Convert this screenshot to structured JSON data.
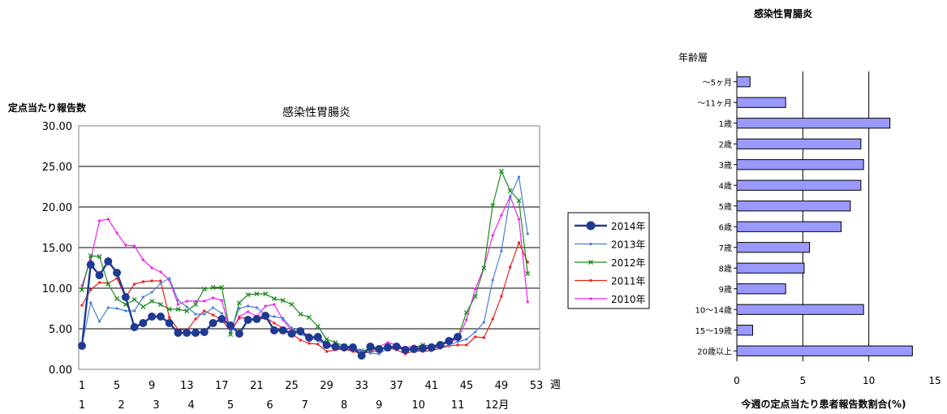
{
  "chart_data": [
    {
      "type": "line",
      "title": "感染性胃腸炎",
      "ylabel": "定点当たり報告数",
      "xlabel": "週",
      "ylim": [
        0,
        30
      ],
      "y_ticks": [
        "0.00",
        "5.00",
        "10.00",
        "15.00",
        "20.00",
        "25.00",
        "30.00"
      ],
      "week_ticks": [
        "1",
        "5",
        "9",
        "13",
        "17",
        "21",
        "25",
        "29",
        "33",
        "37",
        "41",
        "45",
        "49",
        "53"
      ],
      "month_ticks": [
        {
          "label": "1",
          "week": 1
        },
        {
          "label": "2",
          "week": 5.5
        },
        {
          "label": "3",
          "week": 9.5
        },
        {
          "label": "4",
          "week": 13.5
        },
        {
          "label": "5",
          "week": 18
        },
        {
          "label": "6",
          "week": 22.5
        },
        {
          "label": "7",
          "week": 26.5
        },
        {
          "label": "8",
          "week": 31
        },
        {
          "label": "9",
          "week": 35
        },
        {
          "label": "10",
          "week": 39.5
        },
        {
          "label": "11",
          "week": 44
        },
        {
          "label": "12月",
          "week": 48.5
        }
      ],
      "grid": true,
      "legend_position": "right",
      "series": [
        {
          "name": "2014年",
          "color": "#1f3a93",
          "marker": "circle",
          "bold": true,
          "values": [
            2.9,
            12.9,
            11.6,
            13.3,
            11.9,
            8.9,
            5.2,
            5.7,
            6.5,
            6.5,
            5.7,
            4.5,
            4.5,
            4.5,
            4.6,
            5.7,
            6.2,
            5.4,
            4.4,
            6.1,
            6.2,
            6.6,
            4.8,
            4.8,
            4.4,
            4.7,
            3.9,
            4.0,
            3.0,
            2.8,
            2.7,
            2.7,
            1.7,
            2.8,
            2.5,
            2.7,
            2.8,
            2.4,
            2.5,
            2.6,
            2.7,
            3.0,
            3.5,
            4.0
          ]
        },
        {
          "name": "2013年",
          "color": "#4a7fd6",
          "marker": "dot",
          "values": [
            3.0,
            8.2,
            5.9,
            7.6,
            7.5,
            7.2,
            7.2,
            8.9,
            9.5,
            10.6,
            11.2,
            8.5,
            7.7,
            6.8,
            6.8,
            7.6,
            6.9,
            4.7,
            7.5,
            7.8,
            7.6,
            6.7,
            6.5,
            6.3,
            5.1,
            4.3,
            3.9,
            3.5,
            3.0,
            2.8,
            2.6,
            2.6,
            2.3,
            2.0,
            1.9,
            2.6,
            2.7,
            2.6,
            2.4,
            2.4,
            2.6,
            2.7,
            3.0,
            3.4,
            3.7,
            4.6,
            5.8,
            11.0,
            14.6,
            21.3,
            23.7,
            16.7
          ]
        },
        {
          "name": "2012年",
          "color": "#1e8a1e",
          "marker": "x",
          "values": [
            9.8,
            14.0,
            13.9,
            10.5,
            8.7,
            8.0,
            8.6,
            7.7,
            8.4,
            8.0,
            7.4,
            7.4,
            7.2,
            8.0,
            9.9,
            10.1,
            10.1,
            4.3,
            8.2,
            9.2,
            9.3,
            9.3,
            8.7,
            8.5,
            8.0,
            6.8,
            6.4,
            5.3,
            3.7,
            3.3,
            2.9,
            2.7,
            2.3,
            2.4,
            2.6,
            2.5,
            2.9,
            2.4,
            2.7,
            3.0,
            2.9,
            3.1,
            3.6,
            3.9,
            7.0,
            9.0,
            12.5,
            20.2,
            24.4,
            22.0,
            20.8,
            11.8
          ]
        },
        {
          "name": "2011年",
          "color": "#e82020",
          "marker": "square",
          "values": [
            7.9,
            9.8,
            10.7,
            10.6,
            11.2,
            8.9,
            10.5,
            10.8,
            10.9,
            10.9,
            6.4,
            4.9,
            4.8,
            6.2,
            7.2,
            6.7,
            6.1,
            4.7,
            6.3,
            6.4,
            6.0,
            6.4,
            5.7,
            5.1,
            4.4,
            3.6,
            3.2,
            3.1,
            2.2,
            2.4,
            2.5,
            2.2,
            2.0,
            2.1,
            2.4,
            2.7,
            2.4,
            1.9,
            2.3,
            2.2,
            2.3,
            2.6,
            2.9,
            3.0,
            3.0,
            4.0,
            3.9,
            6.2,
            9.0,
            12.6,
            15.6,
            13.2
          ]
        },
        {
          "name": "2010年",
          "color": "#ee22ee",
          "marker": "dot",
          "values": [
            10.3,
            13.5,
            18.3,
            18.5,
            16.8,
            15.3,
            15.2,
            13.5,
            12.5,
            12.0,
            11.0,
            8.0,
            8.4,
            8.4,
            8.4,
            8.8,
            8.5,
            4.4,
            6.5,
            7.1,
            6.5,
            7.8,
            8.0,
            6.1,
            4.8,
            4.5,
            4.3,
            3.6,
            3.3,
            2.7,
            2.4,
            2.5,
            2.2,
            2.2,
            2.8,
            3.3,
            3.0,
            2.6,
            2.9,
            2.7,
            2.7,
            2.9,
            3.4,
            3.7,
            6.1,
            9.9,
            12.5,
            16.5,
            19.0,
            21.3,
            18.5,
            8.3
          ]
        }
      ]
    },
    {
      "type": "bar",
      "orientation": "horizontal",
      "title": "感染性胃腸炎",
      "category_header": "年齢層",
      "xlabel": "今週の定点当たり患者報告数割合(%)",
      "xlim": [
        0,
        15
      ],
      "x_ticks": [
        "0",
        "5",
        "10",
        "15"
      ],
      "grid": true,
      "bar_color": "#9999ff",
      "categories": [
        "～5ヶ月",
        "～11ヶ月",
        "1歳",
        "2歳",
        "3歳",
        "4歳",
        "5歳",
        "6歳",
        "7歳",
        "8歳",
        "9歳",
        "10～14歳",
        "15～19歳",
        "20歳以上"
      ],
      "values": [
        1.0,
        3.7,
        11.6,
        9.4,
        9.6,
        9.4,
        8.6,
        7.9,
        5.5,
        5.1,
        3.7,
        9.6,
        1.2,
        13.3
      ]
    }
  ]
}
